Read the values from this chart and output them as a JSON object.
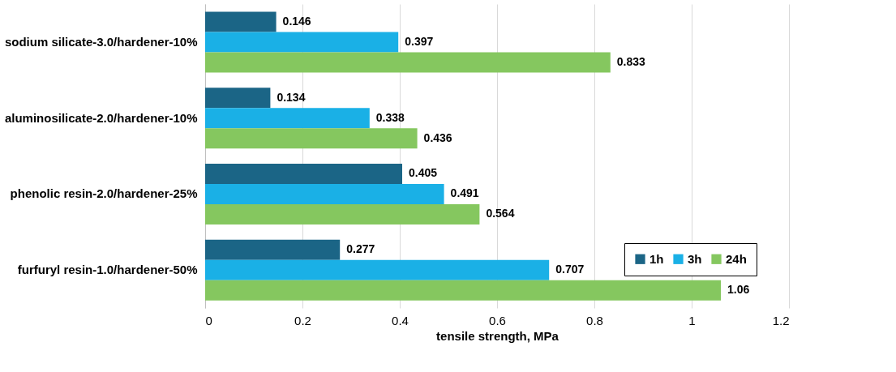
{
  "chart_data": {
    "type": "bar",
    "orientation": "horizontal",
    "xlabel": "tensile strength, MPa",
    "categories": [
      "sodium silicate-3.0/hardener-10%",
      "aluminosilicate-2.0/hardener-10%",
      "phenolic resin-2.0/hardener-25%",
      "furfuryl resin-1.0/hardener-50%"
    ],
    "series": [
      {
        "name": "1h",
        "color": "#1b6586",
        "values": [
          0.146,
          0.134,
          0.405,
          0.277
        ]
      },
      {
        "name": "3h",
        "color": "#1ab0e6",
        "values": [
          0.397,
          0.338,
          0.491,
          0.707
        ]
      },
      {
        "name": "24h",
        "color": "#85c75f",
        "values": [
          0.833,
          0.436,
          0.564,
          1.06
        ]
      }
    ],
    "xlim": [
      0,
      1.2
    ],
    "xticks": [
      0,
      0.2,
      0.4,
      0.6,
      0.8,
      1,
      1.2
    ],
    "grid": "x",
    "legend": "bottom right",
    "data_labels": true
  }
}
